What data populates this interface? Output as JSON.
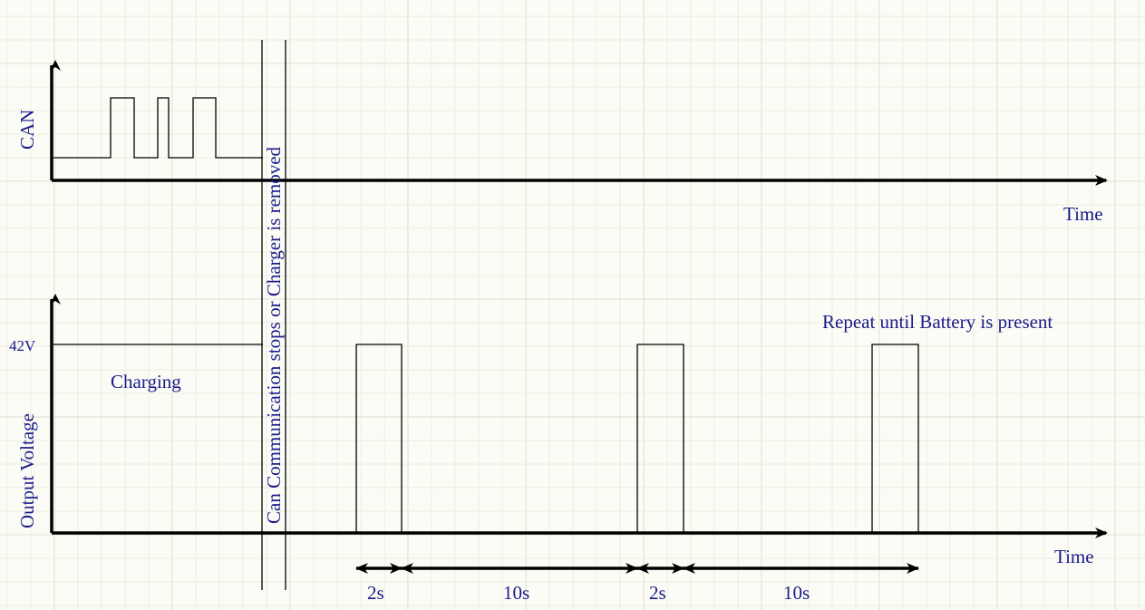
{
  "can_chart": {
    "y_label": "CAN",
    "x_label": "Time"
  },
  "voltage_chart": {
    "y_label": "Output Voltage",
    "x_label": "Time",
    "level_label": "42V",
    "charging_label": "Charging",
    "repeat_note": "Repeat until Battery is present"
  },
  "event_marker": {
    "label": "Can Communication stops or Charger is removed"
  },
  "durations": [
    {
      "label": "2s"
    },
    {
      "label": "10s"
    },
    {
      "label": "2s"
    },
    {
      "label": "10s"
    }
  ],
  "colors": {
    "label_text": "#1a1a8c",
    "signal": "#000000",
    "background": "#fcfcf6",
    "grid": "#dedecd"
  }
}
